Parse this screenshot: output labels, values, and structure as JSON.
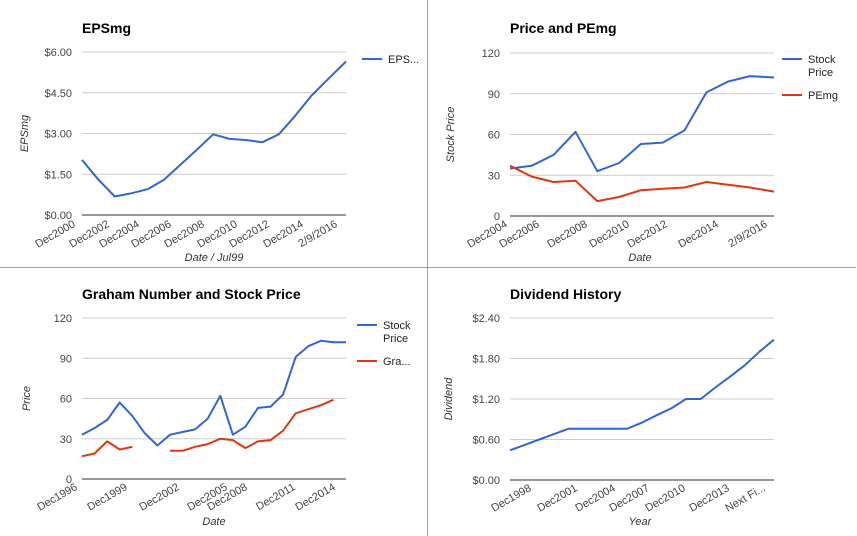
{
  "chart_data": [
    {
      "type": "line",
      "title": "EPSmg",
      "xlabel": "Date / Jul99",
      "ylabel": "EPSmg",
      "ylim": [
        0,
        6
      ],
      "yticks": [
        "$0.00",
        "$1.50",
        "$3.00",
        "$4.50",
        "$6.00"
      ],
      "xtick_labels": [
        "Dec2000",
        "Dec2002",
        "Dec2004",
        "Dec2006",
        "Dec2008",
        "Dec2010",
        "Dec2012",
        "Dec2014",
        "2/9/2016"
      ],
      "legend": "right",
      "grid": true,
      "x": [
        2000,
        2001,
        2002,
        2003,
        2004,
        2005,
        2006,
        2007,
        2008,
        2009,
        2010,
        2011,
        2012,
        2013,
        2014,
        2015,
        2016.1
      ],
      "series": [
        {
          "name": "EPS...",
          "color": "#3366cc",
          "values": [
            2.03,
            1.3,
            0.68,
            0.8,
            0.95,
            1.3,
            1.85,
            2.4,
            2.97,
            2.8,
            2.76,
            2.68,
            2.97,
            3.65,
            4.4,
            5.0,
            5.65
          ]
        }
      ]
    },
    {
      "type": "line",
      "title": "Price and PEmg",
      "xlabel": "Date",
      "ylabel": "Stock Price",
      "ylim": [
        0,
        120
      ],
      "yticks": [
        "0",
        "30",
        "60",
        "90",
        "120"
      ],
      "xtick_labels": [
        "Dec2004",
        "Dec2006",
        "Dec2008",
        "Dec2010",
        "Dec2012",
        "Dec2014",
        "2/9/2016"
      ],
      "legend": "right",
      "grid": true,
      "x": [
        2004,
        2005,
        2006,
        2007,
        2008,
        2009,
        2010,
        2011,
        2012,
        2013,
        2014,
        2015,
        2016.1
      ],
      "series": [
        {
          "name": "Stock Price",
          "color": "#3366cc",
          "values": [
            35,
            37,
            45,
            62,
            33,
            39,
            53,
            54,
            63,
            91,
            99,
            103,
            102
          ]
        },
        {
          "name": "PEmg",
          "color": "#dc3912",
          "values": [
            37,
            29,
            25,
            26,
            11,
            14,
            19,
            20,
            21,
            25,
            23,
            21,
            18
          ]
        }
      ]
    },
    {
      "type": "line",
      "title": "Graham Number and Stock Price",
      "xlabel": "Date",
      "ylabel": "Price",
      "ylim": [
        0,
        120
      ],
      "yticks": [
        "0",
        "30",
        "60",
        "90",
        "120"
      ],
      "xtick_labels": [
        "Dec1996",
        "Dec1999",
        "Dec2002",
        "Dec2005",
        "Dec2008",
        "Dec2011",
        "Dec2014"
      ],
      "legend": "right",
      "grid": true,
      "x": [
        1996,
        1997,
        1998,
        1999,
        2000,
        2001,
        2002,
        2003,
        2004,
        2005,
        2006,
        2007,
        2008,
        2009,
        2010,
        2011,
        2012,
        2013,
        2014,
        2015,
        2016,
        2017
      ],
      "series": [
        {
          "name": "Stock Price",
          "color": "#3366cc",
          "values": [
            33,
            38,
            44,
            57,
            47,
            34,
            25,
            33,
            35,
            37,
            45,
            62,
            33,
            39,
            53,
            54,
            63,
            91,
            99,
            103,
            102,
            102
          ]
        },
        {
          "name": "Gra...",
          "color": "#dc3912",
          "values": [
            17,
            19,
            28,
            22,
            24,
            null,
            null,
            21,
            21,
            24,
            26,
            30,
            29,
            23,
            28,
            29,
            36,
            49,
            52,
            55,
            59,
            null
          ]
        }
      ]
    },
    {
      "type": "line",
      "title": "Dividend History",
      "xlabel": "Year",
      "ylabel": "Dividend",
      "ylim": [
        0,
        2.4
      ],
      "yticks": [
        "$0.00",
        "$0.60",
        "$1.20",
        "$1.80",
        "$2.40"
      ],
      "xtick_labels": [
        "Dec1998",
        "Dec2001",
        "Dec2004",
        "Dec2007",
        "Dec2010",
        "Dec2013",
        "Next Fi..."
      ],
      "legend": "none",
      "grid": true,
      "x": [
        1998,
        1999,
        2000,
        2001,
        2002,
        2003,
        2004,
        2005,
        2006,
        2007,
        2008,
        2009,
        2010,
        2011,
        2012,
        2013,
        2014,
        2015,
        2016
      ],
      "series": [
        {
          "name": "Dividend",
          "color": "#3366cc",
          "values": [
            0.44,
            0.52,
            0.6,
            0.68,
            0.76,
            0.76,
            0.76,
            0.76,
            0.76,
            0.85,
            0.96,
            1.06,
            1.2,
            1.2,
            1.37,
            1.53,
            1.7,
            1.9,
            2.08
          ]
        }
      ]
    }
  ]
}
